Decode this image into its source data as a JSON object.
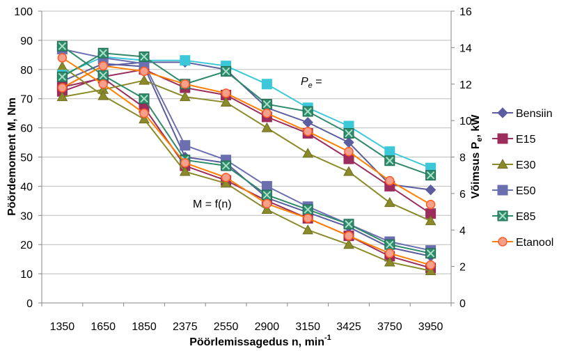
{
  "chart_data": {
    "type": "line",
    "categories": [
      "1350",
      "1650",
      "1850",
      "2375",
      "2550",
      "2900",
      "3150",
      "3425",
      "3750",
      "3950"
    ],
    "xlabel": "Pöörlemissagedus n, min",
    "xlabel_sup": "-1",
    "ylabel": "Pöördemoment M, Nm",
    "y2label": "Võimsus P",
    "y2label_sub": "e",
    "y2label_unit": ", kW",
    "ylim": [
      0,
      100
    ],
    "y_ticks": [
      "0",
      "10",
      "20",
      "30",
      "40",
      "50",
      "60",
      "70",
      "80",
      "90",
      "100"
    ],
    "y2lim": [
      0,
      16
    ],
    "y2_ticks": [
      "0",
      "2",
      "4",
      "6",
      "8",
      "10",
      "12",
      "14",
      "16"
    ],
    "grid": "horizontal",
    "legend_position": "right",
    "annotations": {
      "power": {
        "main": "P",
        "sub": "e",
        "tail": " ="
      },
      "torque": "M = f(n)"
    },
    "series": [
      {
        "name": "Bensiin",
        "color": "#5b5d9e",
        "marker": "diamond",
        "torque": [
          76,
          82,
          81,
          50,
          48,
          36,
          31,
          26,
          19,
          16
        ],
        "power": [
          11.8,
          13.0,
          13.2,
          13.2,
          12.8,
          10.7,
          9.9,
          8.8,
          6.5,
          6.2
        ]
      },
      {
        "name": "E15",
        "color": "#9b2c5c",
        "marker": "square",
        "torque": [
          74,
          77,
          67,
          47,
          42,
          35,
          29,
          23,
          16,
          12
        ],
        "power": [
          11.6,
          12.4,
          12.8,
          11.8,
          11.4,
          10.2,
          9.3,
          7.9,
          6.4,
          4.9
        ]
      },
      {
        "name": "E30",
        "color": "#8a8a2a",
        "marker": "triangle",
        "torque": [
          81,
          71,
          63,
          45,
          41,
          32,
          25,
          20,
          14,
          11
        ],
        "power": [
          11.3,
          11.7,
          12.2,
          11.3,
          11.0,
          9.6,
          8.2,
          7.2,
          5.5,
          4.5
        ]
      },
      {
        "name": "E50",
        "color": "#6b6fb0",
        "marker": "square",
        "torque": [
          87,
          84,
          82,
          54,
          49,
          40,
          33,
          27,
          21,
          18
        ],
        "power": [
          12.5,
          13.5,
          13.3,
          13.3,
          13.0,
          12.0,
          10.7,
          9.7,
          8.3,
          7.4
        ]
      },
      {
        "name": "E85",
        "color": "#2e8a6a",
        "marker": "x",
        "torque": [
          88,
          78,
          70,
          49,
          47,
          37,
          32,
          27,
          20,
          17
        ],
        "power": [
          12.4,
          13.7,
          13.5,
          12.0,
          12.7,
          10.9,
          10.5,
          9.3,
          7.8,
          7.0
        ]
      },
      {
        "name": "Etanool",
        "color": "#ff7f00",
        "marker": "circle",
        "torque": [
          84,
          75,
          65,
          48,
          43,
          34,
          29,
          23,
          17,
          13
        ],
        "power": [
          11.8,
          13.0,
          12.7,
          12.0,
          11.5,
          10.4,
          9.4,
          8.3,
          6.7,
          5.4
        ]
      }
    ]
  }
}
